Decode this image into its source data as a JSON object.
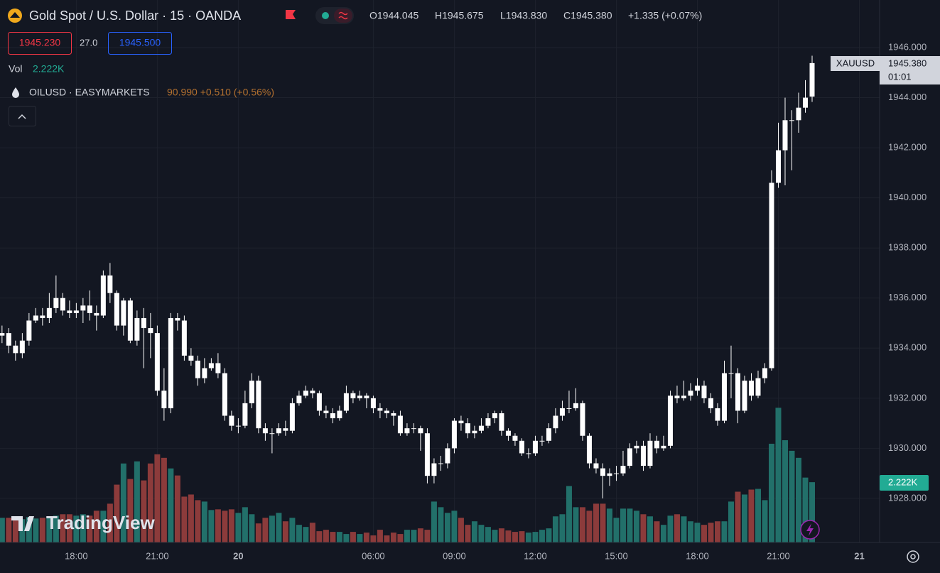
{
  "header": {
    "title": "Gold Spot / U.S. Dollar · 15 · OANDA",
    "ohlc": [
      "O1944.045",
      "H1945.675",
      "L1943.830",
      "C1945.380",
      "+1.335 (+0.07%)"
    ],
    "bid": "1945.230",
    "spread": "27.0",
    "ask": "1945.500",
    "vol_label": "Vol",
    "vol_value": "2.222K",
    "compare_symbol": "OILUSD · EASYMARKETS",
    "compare_values": "90.990 +0.510 (+0.56%)"
  },
  "price_tag": {
    "symbol": "XAUUSD",
    "price": "1945.380",
    "countdown": "01:01"
  },
  "volume_tag": "2.222K",
  "logo": "TradingView",
  "chart_data": {
    "type": "candlestick",
    "candle_color": "#ffffff",
    "up_volume_color": "#22706a",
    "down_volume_color": "#8c3b3b",
    "grid": true,
    "xlim": [
      -0.3,
      130
    ],
    "xticks": [
      {
        "value": 11,
        "label": "18:00"
      },
      {
        "value": 23,
        "label": "21:00"
      },
      {
        "value": 35,
        "label": "20"
      },
      {
        "value": 55,
        "label": "06:00"
      },
      {
        "value": 67,
        "label": "09:00"
      },
      {
        "value": 79,
        "label": "12:00"
      },
      {
        "value": 91,
        "label": "15:00"
      },
      {
        "value": 103,
        "label": "18:00"
      },
      {
        "value": 115,
        "label": "21:00"
      },
      {
        "value": 127,
        "label": "21"
      }
    ],
    "ylim": [
      1926.24,
      1947.9
    ],
    "yticks": [
      {
        "value": 1928,
        "label": "1928.000"
      },
      {
        "value": 1930,
        "label": "1930.000"
      },
      {
        "value": 1932,
        "label": "1932.000"
      },
      {
        "value": 1934,
        "label": "1934.000"
      },
      {
        "value": 1936,
        "label": "1936.000"
      },
      {
        "value": 1938,
        "label": "1938.000"
      },
      {
        "value": 1940,
        "label": "1940.000"
      },
      {
        "value": 1942,
        "label": "1942.000"
      },
      {
        "value": 1944,
        "label": "1944.000"
      },
      {
        "value": 1946,
        "label": "1946.000"
      }
    ],
    "vlim": [
      0,
      20000
    ],
    "open": [
      1934.5,
      1934.6,
      1934.1,
      1933.8,
      1934.3,
      1935.1,
      1935.3,
      1935.2,
      1935.6,
      1936.0,
      1935.5,
      1935.4,
      1935.5,
      1935.7,
      1935.4,
      1935.3,
      1936.9,
      1936.2,
      1934.9,
      1935.9,
      1934.3,
      1935.2,
      1934.8,
      1934.6,
      1932.3,
      1931.6,
      1935.2,
      1935.1,
      1933.7,
      1933.5,
      1932.8,
      1933.2,
      1933.4,
      1933.0,
      1931.3,
      1930.9,
      1930.9,
      1931.8,
      1932.7,
      1930.8,
      1930.6,
      1930.6,
      1930.8,
      1930.7,
      1931.8,
      1932.1,
      1932.3,
      1932.2,
      1931.5,
      1931.4,
      1931.2,
      1931.5,
      1932.2,
      1932.0,
      1932.1,
      1932.0,
      1931.6,
      1931.5,
      1931.4,
      1931.3,
      1930.6,
      1930.8,
      1930.8,
      1930.6,
      1928.9,
      1929.4,
      1929.4,
      1930.0,
      1931.1,
      1931.0,
      1930.6,
      1930.7,
      1930.9,
      1931.2,
      1931.4,
      1930.7,
      1930.5,
      1930.3,
      1929.8,
      1929.8,
      1930.3,
      1930.3,
      1930.8,
      1931.3,
      1931.6,
      1931.6,
      1931.8,
      1930.5,
      1929.4,
      1929.2,
      1928.9,
      1929.0,
      1929.0,
      1929.3,
      1930.0,
      1930.1,
      1929.3,
      1930.3,
      1930.0,
      1930.1,
      1932.1,
      1932.0,
      1932.1,
      1932.3,
      1932.5,
      1932.0,
      1931.6,
      1931.1,
      1933.0,
      1933.0,
      1931.5,
      1932.7,
      1932.1,
      1932.8,
      1933.2,
      1940.6,
      1941.9,
      1943.1,
      1943.1,
      1943.6,
      1944.045
    ],
    "high": [
      1934.9,
      1934.8,
      1934.3,
      1934.6,
      1935.4,
      1935.6,
      1935.6,
      1936.2,
      1936.9,
      1936.2,
      1935.9,
      1935.8,
      1936.0,
      1936.3,
      1935.7,
      1937.1,
      1937.4,
      1936.3,
      1936.0,
      1936.0,
      1935.5,
      1935.6,
      1935.4,
      1934.9,
      1933.2,
      1935.4,
      1935.4,
      1935.3,
      1934.0,
      1933.7,
      1933.6,
      1933.6,
      1933.8,
      1933.2,
      1931.5,
      1931.2,
      1932.3,
      1933.0,
      1932.9,
      1931.0,
      1930.8,
      1931.0,
      1931.1,
      1932.0,
      1932.3,
      1932.5,
      1932.4,
      1932.3,
      1931.7,
      1931.6,
      1931.7,
      1932.5,
      1932.3,
      1932.3,
      1932.2,
      1932.1,
      1931.8,
      1931.6,
      1931.5,
      1931.5,
      1931.0,
      1931.0,
      1930.9,
      1930.8,
      1929.6,
      1929.7,
      1930.2,
      1931.2,
      1931.3,
      1931.2,
      1930.9,
      1931.2,
      1931.4,
      1931.5,
      1931.5,
      1930.8,
      1930.6,
      1930.4,
      1930.0,
      1930.5,
      1930.5,
      1931.0,
      1931.6,
      1931.9,
      1932.3,
      1932.4,
      1931.9,
      1930.6,
      1929.6,
      1929.4,
      1929.2,
      1929.3,
      1929.9,
      1930.2,
      1930.3,
      1930.3,
      1930.6,
      1930.5,
      1930.5,
      1932.3,
      1932.5,
      1932.7,
      1932.6,
      1932.8,
      1932.7,
      1932.2,
      1931.8,
      1933.5,
      1934.1,
      1933.2,
      1932.9,
      1933.0,
      1933.1,
      1933.4,
      1941.1,
      1943.0,
      1944.0,
      1943.5,
      1944.2,
      1944.7,
      1945.675
    ],
    "low": [
      1934.2,
      1933.8,
      1933.5,
      1933.6,
      1934.1,
      1935.0,
      1934.9,
      1935.0,
      1935.4,
      1935.3,
      1935.2,
      1935.2,
      1935.0,
      1935.1,
      1934.7,
      1935.2,
      1935.8,
      1934.7,
      1934.5,
      1934.2,
      1934.1,
      1933.2,
      1933.6,
      1932.1,
      1931.1,
      1931.4,
      1934.7,
      1933.5,
      1933.3,
      1932.5,
      1932.6,
      1933.1,
      1932.8,
      1931.1,
      1930.7,
      1930.6,
      1930.8,
      1931.6,
      1930.6,
      1930.3,
      1929.8,
      1930.5,
      1930.5,
      1930.6,
      1931.7,
      1932.0,
      1932.0,
      1931.3,
      1931.2,
      1931.0,
      1931.1,
      1931.4,
      1931.8,
      1931.9,
      1931.6,
      1931.4,
      1931.2,
      1931.2,
      1930.9,
      1930.5,
      1930.5,
      1930.6,
      1929.9,
      1928.6,
      1928.6,
      1929.1,
      1929.2,
      1929.8,
      1930.7,
      1930.4,
      1930.4,
      1930.6,
      1930.8,
      1931.0,
      1930.5,
      1930.3,
      1930.1,
      1929.7,
      1929.6,
      1929.7,
      1930.1,
      1930.2,
      1930.6,
      1931.1,
      1931.4,
      1931.5,
      1930.3,
      1929.2,
      1929.0,
      1928.0,
      1928.5,
      1928.7,
      1928.9,
      1929.2,
      1929.8,
      1929.1,
      1929.2,
      1929.8,
      1929.9,
      1930.0,
      1931.8,
      1931.9,
      1931.9,
      1932.1,
      1931.8,
      1931.4,
      1930.9,
      1931.0,
      1932.0,
      1931.0,
      1931.4,
      1931.9,
      1932.0,
      1932.6,
      1933.1,
      1940.4,
      1940.5,
      1941.1,
      1942.6,
      1943.4,
      1943.83
    ],
    "close": [
      1934.6,
      1934.1,
      1933.8,
      1934.3,
      1935.1,
      1935.3,
      1935.2,
      1935.6,
      1936.0,
      1935.5,
      1935.4,
      1935.5,
      1935.7,
      1935.4,
      1935.3,
      1936.9,
      1936.2,
      1934.9,
      1935.9,
      1934.3,
      1935.2,
      1934.8,
      1934.6,
      1932.3,
      1931.6,
      1935.2,
      1935.1,
      1933.7,
      1933.5,
      1932.8,
      1933.2,
      1933.4,
      1933.0,
      1931.3,
      1930.9,
      1930.9,
      1931.8,
      1932.7,
      1930.8,
      1930.6,
      1930.6,
      1930.8,
      1930.7,
      1931.8,
      1932.1,
      1932.3,
      1932.2,
      1931.5,
      1931.4,
      1931.2,
      1931.5,
      1932.2,
      1932.0,
      1932.1,
      1932.0,
      1931.6,
      1931.5,
      1931.4,
      1931.3,
      1930.6,
      1930.8,
      1930.8,
      1930.6,
      1928.9,
      1929.4,
      1929.4,
      1930.0,
      1931.1,
      1931.0,
      1930.6,
      1930.7,
      1930.9,
      1931.2,
      1931.4,
      1930.7,
      1930.5,
      1930.3,
      1929.8,
      1929.8,
      1930.3,
      1930.3,
      1930.8,
      1931.3,
      1931.6,
      1931.6,
      1931.8,
      1930.5,
      1929.4,
      1929.2,
      1928.9,
      1929.0,
      1929.0,
      1929.3,
      1930.0,
      1930.1,
      1929.3,
      1930.3,
      1930.0,
      1930.1,
      1932.1,
      1932.0,
      1932.1,
      1932.3,
      1932.5,
      1932.0,
      1931.6,
      1931.1,
      1933.0,
      1933.0,
      1931.5,
      1932.7,
      1932.1,
      1932.8,
      1933.2,
      1940.6,
      1941.9,
      1943.1,
      1943.1,
      1943.6,
      1944.0,
      1945.38
    ],
    "volume": [
      910,
      910,
      910,
      858,
      936,
      884,
      910,
      910,
      988,
      1040,
      1040,
      988,
      1040,
      988,
      1170,
      1170,
      1430,
      2132,
      2912,
      2340,
      2990,
      2288,
      2912,
      3250,
      3120,
      2730,
      2470,
      1690,
      1768,
      1560,
      1508,
      1196,
      1222,
      1170,
      1222,
      1092,
      1300,
      1040,
      702,
      910,
      988,
      1092,
      780,
      910,
      650,
      572,
      728,
      416,
      468,
      390,
      390,
      312,
      390,
      312,
      364,
      260,
      468,
      260,
      364,
      312,
      468,
      468,
      520,
      468,
      1508,
      1300,
      1092,
      1170,
      910,
      650,
      780,
      650,
      572,
      468,
      520,
      442,
      390,
      416,
      364,
      390,
      468,
      520,
      962,
      1040,
      2080,
      1300,
      1300,
      1170,
      1430,
      1430,
      1248,
      910,
      1248,
      1248,
      1170,
      1040,
      962,
      780,
      650,
      988,
      1040,
      962,
      780,
      728,
      650,
      728,
      780,
      780,
      1508,
      1872,
      1768,
      1950,
      1976,
      1560,
      3640,
      4966,
      3770,
      3380,
      3120,
      2392,
      2222
    ]
  }
}
